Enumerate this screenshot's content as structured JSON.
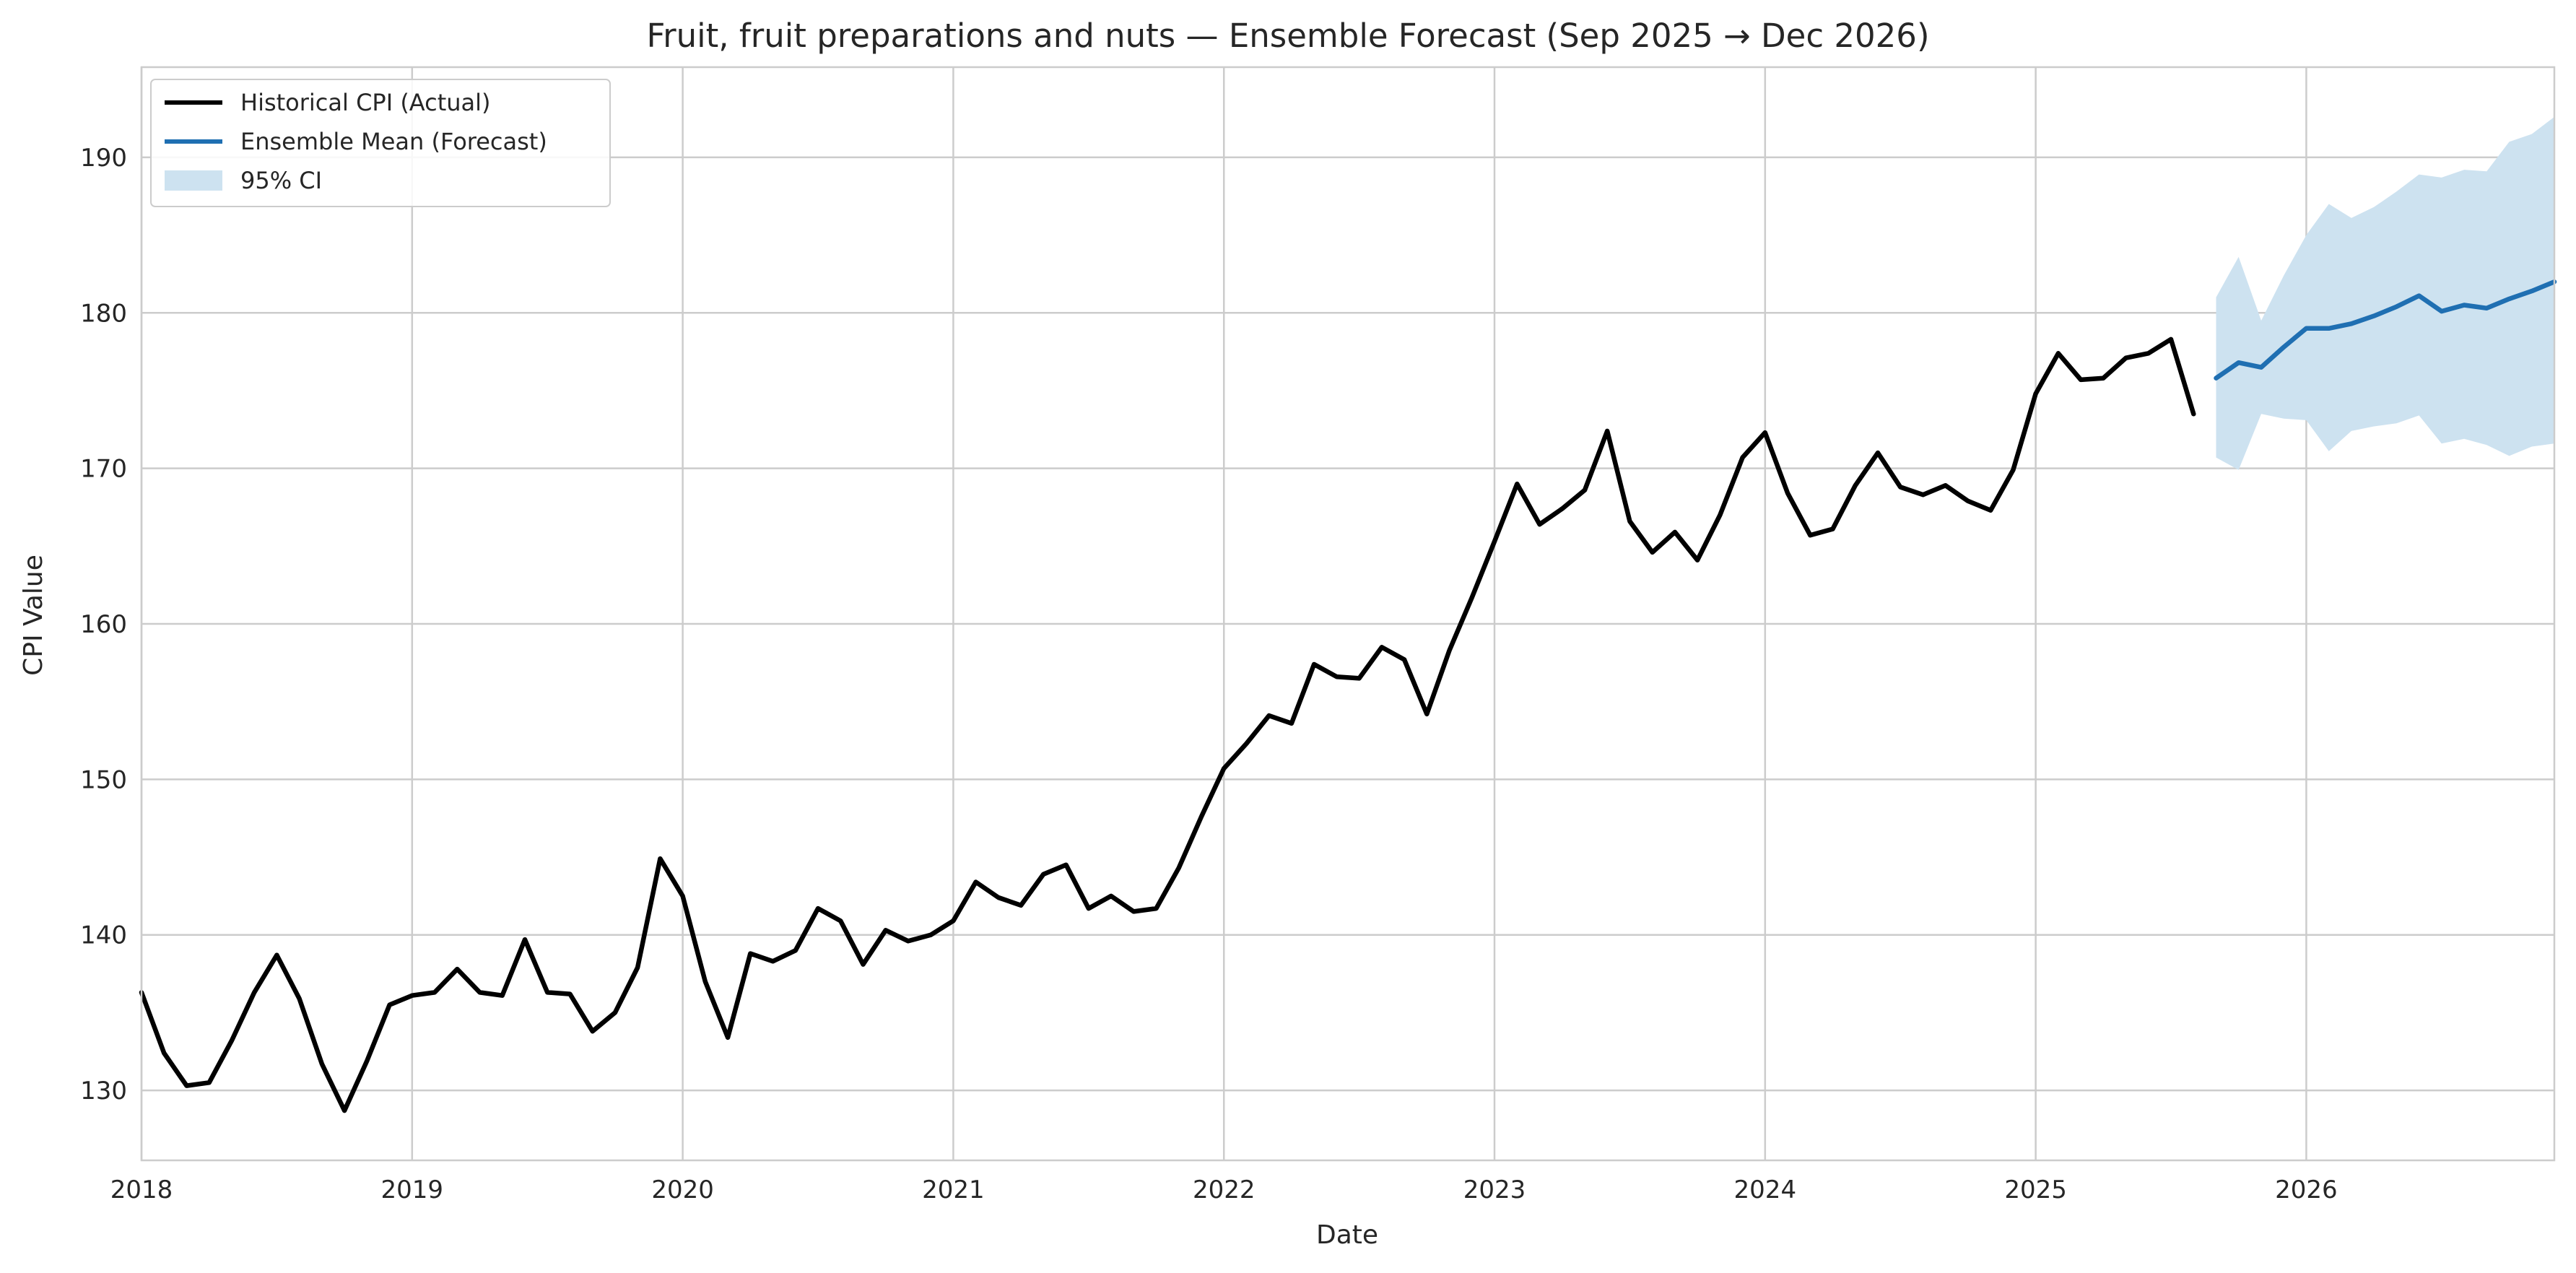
{
  "chart_data": {
    "type": "line",
    "title": "Fruit, fruit preparations and nuts — Ensemble Forecast (Sep 2025 → Dec 2026)",
    "xlabel": "Date",
    "ylabel": "CPI Value",
    "xlim": [
      "2018-01",
      "2026-12"
    ],
    "ylim": [
      125.5,
      195.8
    ],
    "x_ticks": [
      "2018",
      "2019",
      "2020",
      "2021",
      "2022",
      "2023",
      "2024",
      "2025",
      "2026"
    ],
    "y_ticks": [
      130,
      140,
      150,
      160,
      170,
      180,
      190
    ],
    "grid": true,
    "legend_position": "top-left",
    "legend": {
      "historical": "Historical CPI (Actual)",
      "forecast": "Ensemble Mean (Forecast)",
      "ci": "95% CI"
    },
    "colors": {
      "historical": "#000000",
      "forecast": "#1f6fb2",
      "ci": "#cde2f0",
      "grid": "#cccccc",
      "frame": "#cccccc"
    },
    "series": [
      {
        "name": "Historical CPI (Actual)",
        "start": "2018-01",
        "values": [
          136.3,
          132.4,
          130.3,
          130.5,
          133.2,
          136.3,
          138.7,
          135.9,
          131.7,
          128.7,
          131.9,
          135.5,
          136.1,
          136.3,
          137.8,
          136.3,
          136.1,
          139.7,
          136.3,
          136.2,
          133.8,
          135.0,
          137.9,
          144.9,
          142.5,
          137.0,
          133.4,
          138.8,
          138.3,
          139.0,
          141.7,
          140.9,
          138.1,
          140.3,
          139.6,
          140.0,
          140.9,
          143.4,
          142.4,
          141.9,
          143.9,
          144.5,
          141.7,
          142.5,
          141.5,
          141.7,
          144.3,
          147.6,
          150.7,
          152.3,
          154.1,
          153.6,
          157.4,
          156.6,
          156.5,
          158.5,
          157.7,
          154.2,
          158.3,
          161.7,
          165.3,
          169.0,
          166.4,
          167.4,
          168.6,
          172.4,
          166.6,
          164.6,
          165.9,
          164.1,
          167.0,
          170.7,
          172.3,
          168.4,
          165.7,
          166.1,
          168.9,
          171.0,
          168.8,
          168.3,
          168.9,
          167.9,
          167.3,
          169.9,
          174.8,
          177.4,
          175.7,
          175.8,
          177.1,
          177.4,
          178.3,
          173.5
        ]
      },
      {
        "name": "Ensemble Mean (Forecast)",
        "start": "2025-09",
        "values": [
          175.8,
          176.8,
          176.5,
          177.8,
          179.0,
          179.0,
          179.3,
          179.8,
          180.4,
          181.1,
          180.1,
          180.5,
          180.3,
          180.9,
          181.4,
          182.0
        ]
      }
    ],
    "ci_95": {
      "start": "2025-09",
      "upper": [
        181.0,
        183.6,
        179.5,
        182.4,
        185.0,
        187.0,
        186.1,
        186.8,
        187.8,
        188.9,
        188.7,
        189.2,
        189.1,
        191.0,
        191.5,
        192.6
      ],
      "lower": [
        170.7,
        169.9,
        173.5,
        173.2,
        173.1,
        171.1,
        172.4,
        172.7,
        172.9,
        173.4,
        171.6,
        171.9,
        171.5,
        170.8,
        171.4,
        171.6
      ]
    }
  }
}
